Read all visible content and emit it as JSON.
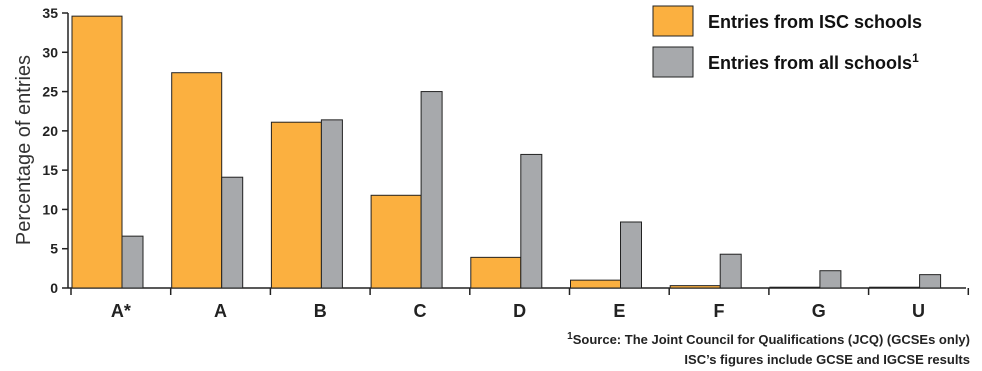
{
  "chart_data": {
    "type": "bar",
    "title": "",
    "xlabel": "",
    "ylabel": "Percentage of entries",
    "ylim": [
      0,
      35
    ],
    "yticks": [
      0,
      5,
      10,
      15,
      20,
      25,
      30,
      35
    ],
    "grid": false,
    "legend_position": "top-right",
    "categories": [
      "A*",
      "A",
      "B",
      "C",
      "D",
      "E",
      "F",
      "G",
      "U"
    ],
    "series": [
      {
        "name": "Entries from ISC schools",
        "color": "#FBB040",
        "values": [
          34.6,
          27.4,
          21.1,
          11.8,
          3.9,
          1.0,
          0.3,
          0.1,
          0.1
        ]
      },
      {
        "name": "Entries from all schools",
        "name_superscript": "1",
        "color": "#A7A9AC",
        "values": [
          6.6,
          14.1,
          21.4,
          25.0,
          17.0,
          8.4,
          4.3,
          2.2,
          1.7
        ]
      }
    ],
    "notes": {
      "source_marker": "1",
      "source": "Source: The Joint Council for Qualifications (JCQ) (GCSEs only)",
      "line2": "ISC’s figures include GCSE and IGCSE results"
    }
  }
}
